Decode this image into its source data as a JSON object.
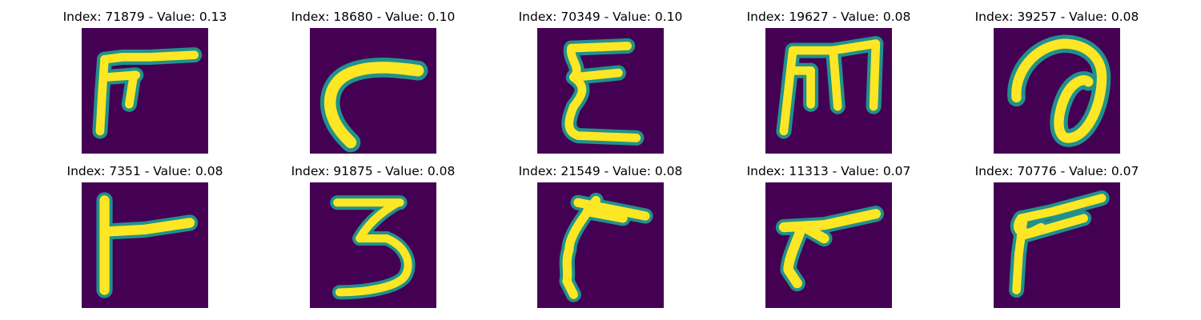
{
  "figure": {
    "colors": {
      "background": "#440154",
      "glyph_core": "#fde725",
      "glyph_edge": "#21918c"
    },
    "panels": [
      {
        "title": "Index: 71879 - Value: 0.13",
        "index": 71879,
        "value": 0.13,
        "glyph": "F-shape"
      },
      {
        "title": "Index: 18680 - Value: 0.10",
        "index": 18680,
        "value": 0.1,
        "glyph": "C-curve"
      },
      {
        "title": "Index: 70349 - Value: 0.10",
        "index": 70349,
        "value": 0.1,
        "glyph": "E-shape"
      },
      {
        "title": "Index: 19627 - Value: 0.08",
        "index": 19627,
        "value": 0.08,
        "glyph": "M-shape"
      },
      {
        "title": "Index: 39257 - Value: 0.08",
        "index": 39257,
        "value": 0.08,
        "glyph": "a-loop"
      },
      {
        "title": "Index: 7351 - Value: 0.08",
        "index": 7351,
        "value": 0.08,
        "glyph": "r-shape"
      },
      {
        "title": "Index: 91875 - Value: 0.08",
        "index": 91875,
        "value": 0.08,
        "glyph": "3-shape"
      },
      {
        "title": "Index: 21549 - Value: 0.08",
        "index": 21549,
        "value": 0.08,
        "glyph": "r-hook"
      },
      {
        "title": "Index: 11313 - Value: 0.07",
        "index": 11313,
        "value": 0.07,
        "glyph": "r-slant"
      },
      {
        "title": "Index: 70776 - Value: 0.07",
        "index": 70776,
        "value": 0.07,
        "glyph": "P-shape"
      }
    ]
  }
}
